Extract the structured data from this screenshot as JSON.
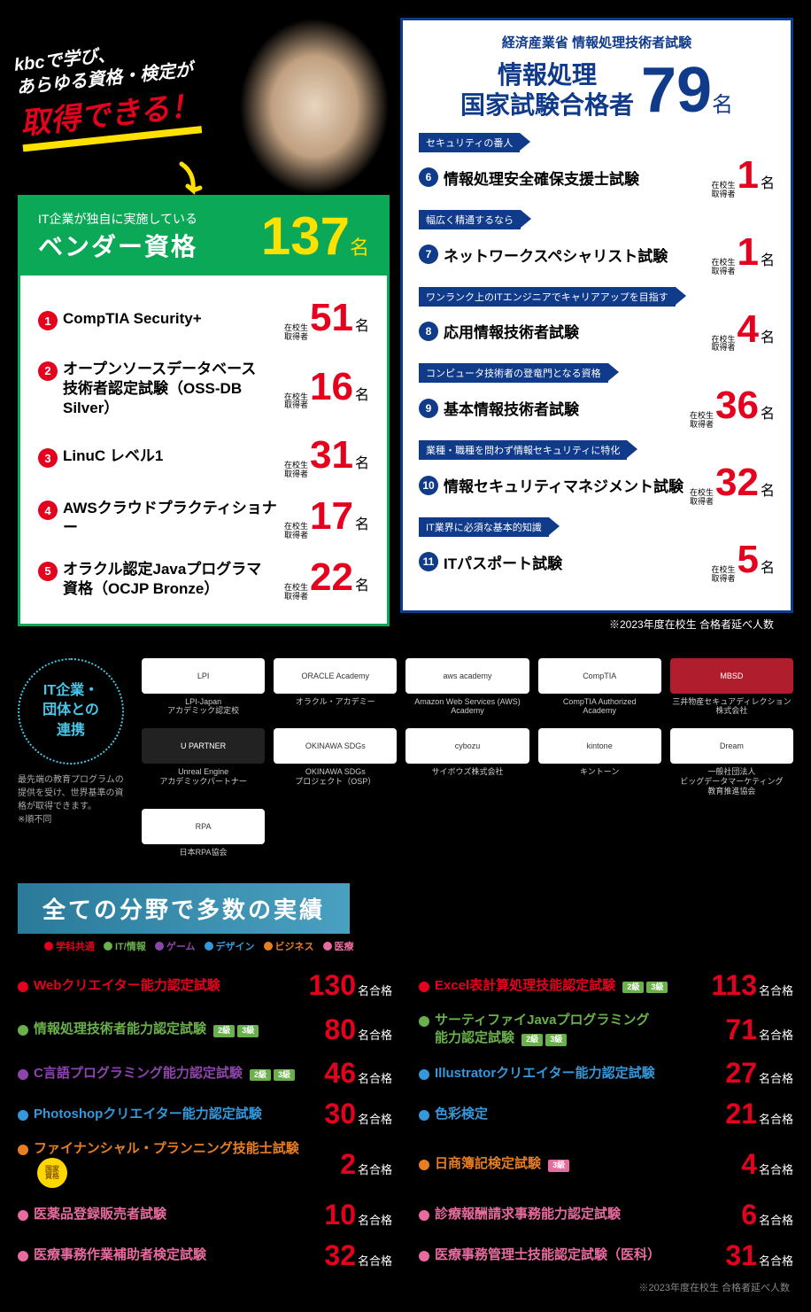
{
  "catch": {
    "line1": "kbcで学び、",
    "line2": "あらゆる資格・検定が",
    "big": "取得できる！"
  },
  "vendor": {
    "sub": "IT企業が独自に実施している",
    "title": "ベンダー資格",
    "total": "137",
    "total_suffix": "名",
    "holder_label": "在校生\n取得者",
    "items": [
      {
        "num": "1",
        "name": "CompTIA Security+",
        "count": "51"
      },
      {
        "num": "2",
        "name": "オープンソースデータベース\n技術者認定試験（OSS-DB Silver）",
        "count": "16"
      },
      {
        "num": "3",
        "name": "LinuC レベル1",
        "count": "31"
      },
      {
        "num": "4",
        "name": "AWSクラウドプラクティショナー",
        "count": "17"
      },
      {
        "num": "5",
        "name": "オラクル認定Javaプログラマ\n資格（OCJP Bronze）",
        "count": "22"
      }
    ],
    "count_suffix": "名"
  },
  "national": {
    "sub": "経済産業省 情報処理技術者試験",
    "title": "情報処理\n国家試験合格者",
    "total": "79",
    "total_suffix": "名",
    "holder_label": "在校生\n取得者",
    "count_suffix": "名",
    "items": [
      {
        "num": "6",
        "tag": "セキュリティの番人",
        "name": "情報処理安全確保支援士試験",
        "count": "1"
      },
      {
        "num": "7",
        "tag": "幅広く精通するなら",
        "name": "ネットワークスペシャリスト試験",
        "count": "1"
      },
      {
        "num": "8",
        "tag": "ワンランク上のITエンジニアでキャリアアップを目指す",
        "name": "応用情報技術者試験",
        "count": "4"
      },
      {
        "num": "9",
        "tag": "コンピュータ技術者の登竜門となる資格",
        "name": "基本情報技術者試験",
        "count": "36"
      },
      {
        "num": "10",
        "tag": "業種・職種を問わず情報セキュリティに特化",
        "name": "情報セキュリティマネジメント試験",
        "count": "32"
      },
      {
        "num": "11",
        "tag": "IT業界に必須な基本的知識",
        "name": "ITパスポート試験",
        "count": "5"
      }
    ]
  },
  "top_note": "※2023年度在校生 合格者延べ人数",
  "partners": {
    "circle": "IT企業・\n団体との\n連携",
    "desc": "最先端の教育プログラムの提供を受け、世界基準の資格が取得できます。\n※順不同",
    "list": [
      {
        "logo": "LPI",
        "name": "LPI-Japan\nアカデミック認定校",
        "style": "light"
      },
      {
        "logo": "ORACLE Academy",
        "name": "オラクル・アカデミー",
        "style": "light"
      },
      {
        "logo": "aws academy",
        "name": "Amazon Web Services (AWS)\nAcademy",
        "style": "light"
      },
      {
        "logo": "CompTIA",
        "name": "CompTIA Authorized\nAcademy",
        "style": "light"
      },
      {
        "logo": "MBSD",
        "name": "三井物産セキュアディレクション\n株式会社",
        "style": "red"
      },
      {
        "logo": "U PARTNER",
        "name": "Unreal Engine\nアカデミックパートナー",
        "style": "dark"
      },
      {
        "logo": "OKINAWA SDGs",
        "name": "OKINAWA SDGs\nプロジェクト（OSP）",
        "style": "light"
      },
      {
        "logo": "cybozu",
        "name": "サイボウズ株式会社",
        "style": "light"
      },
      {
        "logo": "kintone",
        "name": "キントーン",
        "style": "light"
      },
      {
        "logo": "Dream",
        "name": "一般社団法人\nビッグデータマーケティング\n教育推進協会",
        "style": "light"
      },
      {
        "logo": "RPA",
        "name": "日本RPA協会",
        "style": "light"
      }
    ]
  },
  "results": {
    "banner": "全ての分野で多数の実績",
    "legend": [
      {
        "label": "学科共通",
        "color": "#e5001e"
      },
      {
        "label": "IT/情報",
        "color": "#6ab04c"
      },
      {
        "label": "ゲーム",
        "color": "#8e44ad"
      },
      {
        "label": "デザイン",
        "color": "#3498db"
      },
      {
        "label": "ビジネス",
        "color": "#e67e22"
      },
      {
        "label": "医療",
        "color": "#e86ba0"
      }
    ],
    "suffix": "名合格",
    "items": [
      {
        "color": "#e5001e",
        "name": "Webクリエイター能力認定試験",
        "count": "130"
      },
      {
        "color": "#e5001e",
        "name": "Excel表計算処理技能認定試験",
        "grades": [
          "2級",
          "3級"
        ],
        "count": "113"
      },
      {
        "color": "#6ab04c",
        "name": "情報処理技術者能力認定試験",
        "grades": [
          "2級",
          "3級"
        ],
        "count": "80"
      },
      {
        "color": "#6ab04c",
        "name": "サーティファイJavaプログラミング\n能力認定試験",
        "grades": [
          "2級",
          "3級"
        ],
        "count": "71"
      },
      {
        "color": "#8e44ad",
        "name": "C言語プログラミング能力認定試験",
        "grades": [
          "2級",
          "3級"
        ],
        "count": "46"
      },
      {
        "color": "#3498db",
        "name": "Illustratorクリエイター能力認定試験",
        "count": "27"
      },
      {
        "color": "#3498db",
        "name": "Photoshopクリエイター能力認定試験",
        "count": "30"
      },
      {
        "color": "#3498db",
        "name": "色彩検定",
        "count": "21"
      },
      {
        "color": "#e67e22",
        "name": "ファイナンシャル・プランニング技能士試験",
        "national_badge": true,
        "count": "2"
      },
      {
        "color": "#e67e22",
        "name": "日商簿記検定試験",
        "grades_pink": [
          "3級"
        ],
        "count": "4"
      },
      {
        "color": "#e86ba0",
        "name": "医薬品登録販売者試験",
        "count": "10"
      },
      {
        "color": "#e86ba0",
        "name": "診療報酬請求事務能力認定試験",
        "count": "6"
      },
      {
        "color": "#e86ba0",
        "name": "医療事務作業補助者検定試験",
        "count": "32"
      },
      {
        "color": "#e86ba0",
        "name": "医療事務管理士技能認定試験（医科）",
        "count": "31"
      }
    ],
    "note": "※2023年度在校生 合格者延べ人数"
  },
  "colors": {
    "green": "#0ba858",
    "navy": "#103a8a",
    "red": "#e5001e",
    "yellow": "#ffe100",
    "cyan": "#49c5e8"
  }
}
